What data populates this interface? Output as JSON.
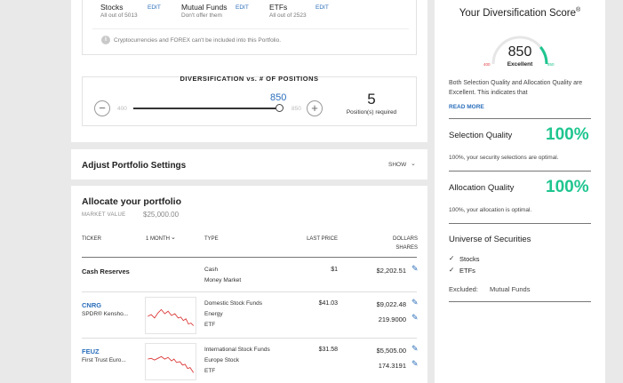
{
  "universe_top": {
    "stocks": {
      "label": "Stocks",
      "sub": "All out of 5013",
      "edit": "EDIT"
    },
    "mutual_funds": {
      "label": "Mutual Funds",
      "sub": "Don't offer them",
      "edit": "EDIT"
    },
    "etfs": {
      "label": "ETFs",
      "sub": "All out of 2523",
      "edit": "EDIT"
    },
    "notice": "Cryptocurrencies and FOREX can't be included into this Portfolio."
  },
  "diversification_slider": {
    "title": "DIVERSIFICATION vs. # OF POSITIONS",
    "min_label": "400",
    "max_label": "850",
    "value": "850",
    "positions_count": "5",
    "positions_label": "Position(s) required",
    "level": 1.0
  },
  "adjust_settings": {
    "title": "Adjust Portfolio Settings",
    "toggle": "SHOW"
  },
  "allocate": {
    "title": "Allocate your portfolio",
    "market_value_label": "MARKET VALUE",
    "market_value": "$25,000.00",
    "columns": {
      "ticker": "TICKER",
      "period": "1 MONTH",
      "type": "TYPE",
      "last_price": "LAST PRICE",
      "dollars": "DOLLARS",
      "shares": "SHARES"
    },
    "rows": [
      {
        "ticker": "Cash Reserves",
        "name": "",
        "type1": "Cash",
        "type2": "Money Market",
        "type3": "",
        "price": "$1",
        "dollars": "$2,202.51",
        "shares": ""
      },
      {
        "ticker": "CNRG",
        "name": "SPDR® Kensho...",
        "type1": "Domestic Stock Funds",
        "type2": "Energy",
        "type3": "ETF",
        "price": "$41.03",
        "dollars": "$9,022.48",
        "shares": "219.9000"
      },
      {
        "ticker": "FEUZ",
        "name": "First Trust Euro...",
        "type1": "International Stock Funds",
        "type2": "Europe Stock",
        "type3": "ETF",
        "price": "$31.58",
        "dollars": "$5,505.00",
        "shares": "174.3191"
      }
    ]
  },
  "score_panel": {
    "title": "Your Diversification Score",
    "title_mark": "®",
    "score": "850",
    "rating": "Excellent",
    "gauge_min": "400",
    "gauge_max": "850",
    "gauge_level": 1.0,
    "description": "Both Selection Quality and Allocation Quality are Excellent. This indicates that",
    "read_more": "READ MORE",
    "selection": {
      "label": "Selection Quality",
      "value": "100%",
      "note": "100%, your security selections are optimal."
    },
    "allocation": {
      "label": "Allocation Quality",
      "value": "100%",
      "note": "100%, your allocation is optimal."
    },
    "universe": {
      "title": "Universe of Securities",
      "items": [
        "Stocks",
        "ETFs"
      ],
      "excluded_label": "Excluded:",
      "excluded_value": "Mutual Funds"
    },
    "colors": {
      "accent_green": "#1fc58f",
      "link_blue": "#2a6ebb",
      "gauge_red": "#e0393e"
    }
  }
}
